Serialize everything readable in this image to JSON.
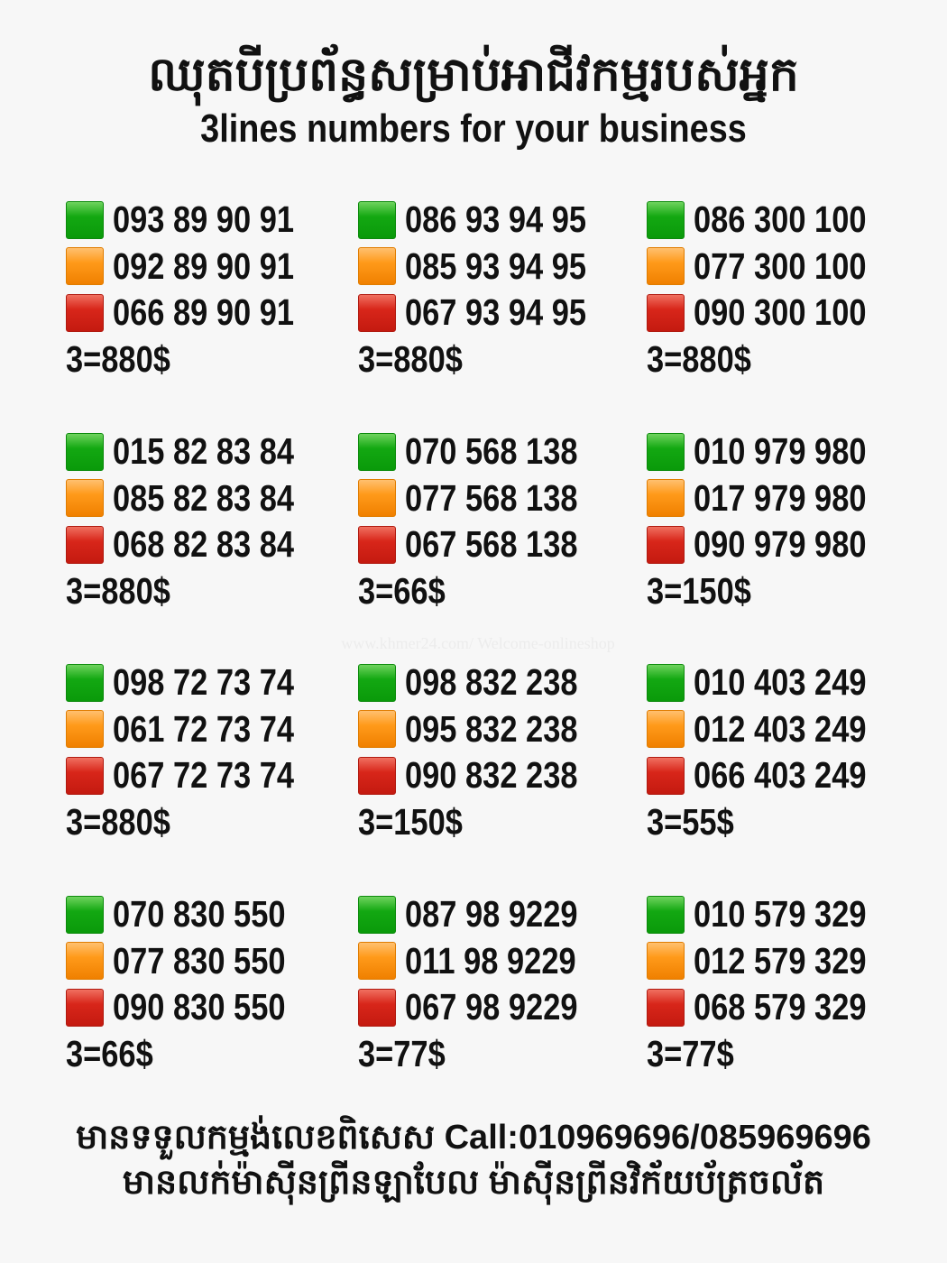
{
  "header": {
    "title_khmer": "ឈុតបីប្រព័ន្ធសម្រាប់អាជីវកម្មរបស់អ្នក",
    "title_english": "3lines numbers for your business"
  },
  "colors": {
    "line1": "#13a812",
    "line2": "#ff9a1a",
    "line3": "#d8261a"
  },
  "groups": [
    {
      "numbers": [
        "093 89 90 91",
        "092 89 90 91",
        "066 89 90 91"
      ],
      "price": "3=880$"
    },
    {
      "numbers": [
        "086 93 94 95",
        "085 93 94 95",
        "067 93 94 95"
      ],
      "price": "3=880$"
    },
    {
      "numbers": [
        "086 300 100",
        "077 300 100",
        "090 300 100"
      ],
      "price": "3=880$"
    },
    {
      "numbers": [
        "015 82 83 84",
        "085 82 83 84",
        "068 82 83 84"
      ],
      "price": "3=880$"
    },
    {
      "numbers": [
        "070 568 138",
        "077 568 138",
        "067 568 138"
      ],
      "price": "3=66$"
    },
    {
      "numbers": [
        "010 979 980",
        "017 979 980",
        "090 979 980"
      ],
      "price": "3=150$"
    },
    {
      "numbers": [
        "098 72 73 74",
        "061 72 73 74",
        "067 72 73 74"
      ],
      "price": "3=880$"
    },
    {
      "numbers": [
        "098 832 238",
        "095 832 238",
        "090 832 238"
      ],
      "price": "3=150$"
    },
    {
      "numbers": [
        "010 403 249",
        "012 403 249",
        "066 403 249"
      ],
      "price": "3=55$"
    },
    {
      "numbers": [
        "070 830 550",
        "077 830 550",
        "090 830 550"
      ],
      "price": "3=66$"
    },
    {
      "numbers": [
        "087 98 9229",
        "011 98 9229",
        "067 98 9229"
      ],
      "price": "3=77$"
    },
    {
      "numbers": [
        "010 579 329",
        "012 579 329",
        "068 579 329"
      ],
      "price": "3=77$"
    }
  ],
  "watermark": "www.khmer24.com/ Welcome-onlineshop",
  "footer": {
    "line1": "មានទទួលកម្មង់លេខពិសេស Call:010969696/085969696",
    "line2": "មានលក់ម៉ាស៊ីនព្រីនឡាបែល ម៉ាស៊ីនព្រីនវិក័យប័ត្រចល័ត"
  }
}
